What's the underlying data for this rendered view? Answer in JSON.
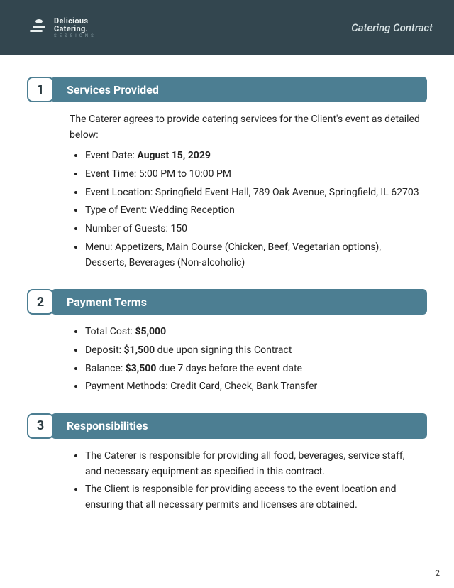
{
  "colors": {
    "header_bg": "#33464f",
    "accent": "#4c7e92",
    "text": "#2a2a2a",
    "header_text": "#d8e3e5"
  },
  "header": {
    "logo_line1": "Delicious",
    "logo_line2": "Catering.",
    "logo_line3": "SESSIONS",
    "doc_title": "Catering Contract"
  },
  "page_number": "2",
  "sections": [
    {
      "num": "1",
      "title": "Services Provided",
      "intro": "The Caterer agrees to provide catering services for the Client's event as detailed below:",
      "items": [
        {
          "label": "Event Date:",
          "bold": "August 15, 2029",
          "rest": ""
        },
        {
          "label": "Event Time:",
          "bold": "",
          "rest": "5:00 PM to 10:00 PM"
        },
        {
          "label": "Event Location:",
          "bold": "",
          "rest": "Springfield Event Hall, 789 Oak Avenue, Springfield, IL 62703"
        },
        {
          "label": "Type of Event:",
          "bold": "",
          "rest": "Wedding Reception"
        },
        {
          "label": "Number of Guests:",
          "bold": "",
          "rest": "150"
        },
        {
          "label": "Menu:",
          "bold": "",
          "rest": "Appetizers, Main Course (Chicken, Beef, Vegetarian options), Desserts, Beverages (Non-alcoholic)"
        }
      ]
    },
    {
      "num": "2",
      "title": "Payment Terms",
      "intro": "",
      "items": [
        {
          "label": "Total Cost:",
          "bold": "$5,000",
          "rest": ""
        },
        {
          "label": "Deposit:",
          "bold": "$1,500",
          "rest": "due upon signing this Contract"
        },
        {
          "label": "Balance:",
          "bold": "$3,500",
          "rest": "due 7 days before the event date"
        },
        {
          "label": "Payment Methods:",
          "bold": "",
          "rest": "Credit Card, Check, Bank Transfer"
        }
      ]
    },
    {
      "num": "3",
      "title": "Responsibilities",
      "intro": "",
      "items": [
        {
          "label": "",
          "bold": "",
          "rest": "The Caterer is responsible for providing all food, beverages, service staff, and necessary equipment as specified in this contract."
        },
        {
          "label": "",
          "bold": "",
          "rest": "The Client is responsible for providing access to the event location and ensuring that all necessary permits and licenses are obtained."
        }
      ]
    }
  ]
}
